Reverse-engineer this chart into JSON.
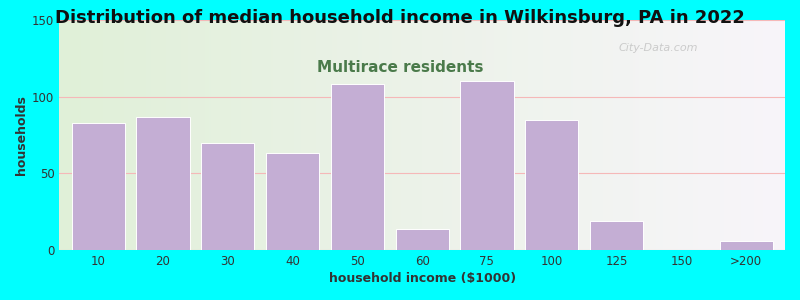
{
  "title": "Distribution of median household income in Wilkinsburg, PA in 2022",
  "subtitle": "Multirace residents",
  "xlabel": "household income ($1000)",
  "ylabel": "households",
  "bar_color": "#C4AED4",
  "bar_edge_color": "#ffffff",
  "categories": [
    "10",
    "20",
    "30",
    "40",
    "50",
    "60",
    "75",
    "100",
    "125",
    "150",
    ">200"
  ],
  "values": [
    83,
    87,
    70,
    63,
    108,
    14,
    110,
    85,
    19,
    0,
    6
  ],
  "ylim": [
    0,
    150
  ],
  "yticks": [
    0,
    50,
    100,
    150
  ],
  "background_outer": "#00FFFF",
  "grid_color": "#f5b8b8",
  "title_fontsize": 13,
  "subtitle_fontsize": 11,
  "subtitle_color": "#4a7a4a",
  "axis_label_fontsize": 9,
  "tick_fontsize": 8.5,
  "watermark": "City-Data.com"
}
